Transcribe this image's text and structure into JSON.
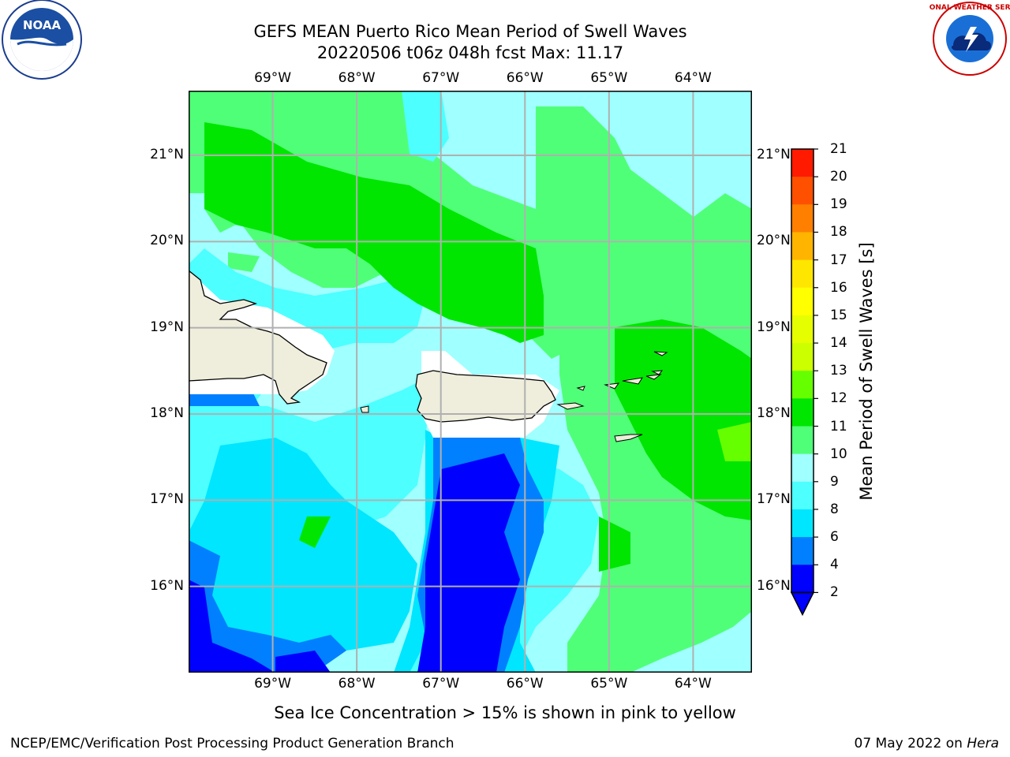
{
  "header": {
    "title_line1": "GEFS MEAN Puerto Rico Mean Period of Swell Waves",
    "title_line2": "20220506 t06z 048h fcst   Max: 11.17"
  },
  "map": {
    "lon_ticks": [
      "69°W",
      "68°W",
      "67°W",
      "66°W",
      "65°W",
      "64°W"
    ],
    "lat_ticks": [
      "21°N",
      "20°N",
      "19°N",
      "18°N",
      "17°N",
      "16°N"
    ],
    "lon_range": [
      -70.0,
      -63.3
    ],
    "lat_range": [
      15.0,
      21.75
    ],
    "colors": {
      "land": "#efeedc",
      "mask": "#ffffff",
      "grid": "#b0b0b0",
      "coast": "#000000"
    }
  },
  "colorbar": {
    "title": "Mean Period of Swell Waves [s]",
    "tick_labels": [
      "21",
      "20",
      "19",
      "18",
      "17",
      "16",
      "15",
      "14",
      "13",
      "12",
      "11",
      "10",
      "9",
      "8",
      "6",
      "4",
      "2"
    ],
    "bins": [
      {
        "from": 2,
        "to": 4,
        "color": "#0000ff"
      },
      {
        "from": 4,
        "to": 6,
        "color": "#0080ff"
      },
      {
        "from": 6,
        "to": 8,
        "color": "#00e6ff"
      },
      {
        "from": 8,
        "to": 9,
        "color": "#4dffff"
      },
      {
        "from": 9,
        "to": 10,
        "color": "#a0ffff"
      },
      {
        "from": 10,
        "to": 11,
        "color": "#50ff78"
      },
      {
        "from": 11,
        "to": 12,
        "color": "#00e600"
      },
      {
        "from": 12,
        "to": 13,
        "color": "#66ff00"
      },
      {
        "from": 13,
        "to": 14,
        "color": "#ccff00"
      },
      {
        "from": 14,
        "to": 15,
        "color": "#e6ff00"
      },
      {
        "from": 15,
        "to": 16,
        "color": "#ffff00"
      },
      {
        "from": 16,
        "to": 17,
        "color": "#ffe600"
      },
      {
        "from": 17,
        "to": 18,
        "color": "#ffb400"
      },
      {
        "from": 18,
        "to": 19,
        "color": "#ff8000"
      },
      {
        "from": 19,
        "to": 20,
        "color": "#ff5000"
      },
      {
        "from": 20,
        "to": 21,
        "color": "#ff1a00"
      }
    ],
    "under_color": "#0000ff"
  },
  "footer": {
    "note": "Sea Ice Concentration > 15% is shown in pink to yellow",
    "left": "NCEP/EMC/Verification Post Processing Product Generation Branch",
    "right_date": "07 May 2022 on ",
    "right_host": "Hera"
  },
  "logos": {
    "left_text": "NOAA",
    "right_text": "NATIONAL WEATHER SERVICE"
  }
}
